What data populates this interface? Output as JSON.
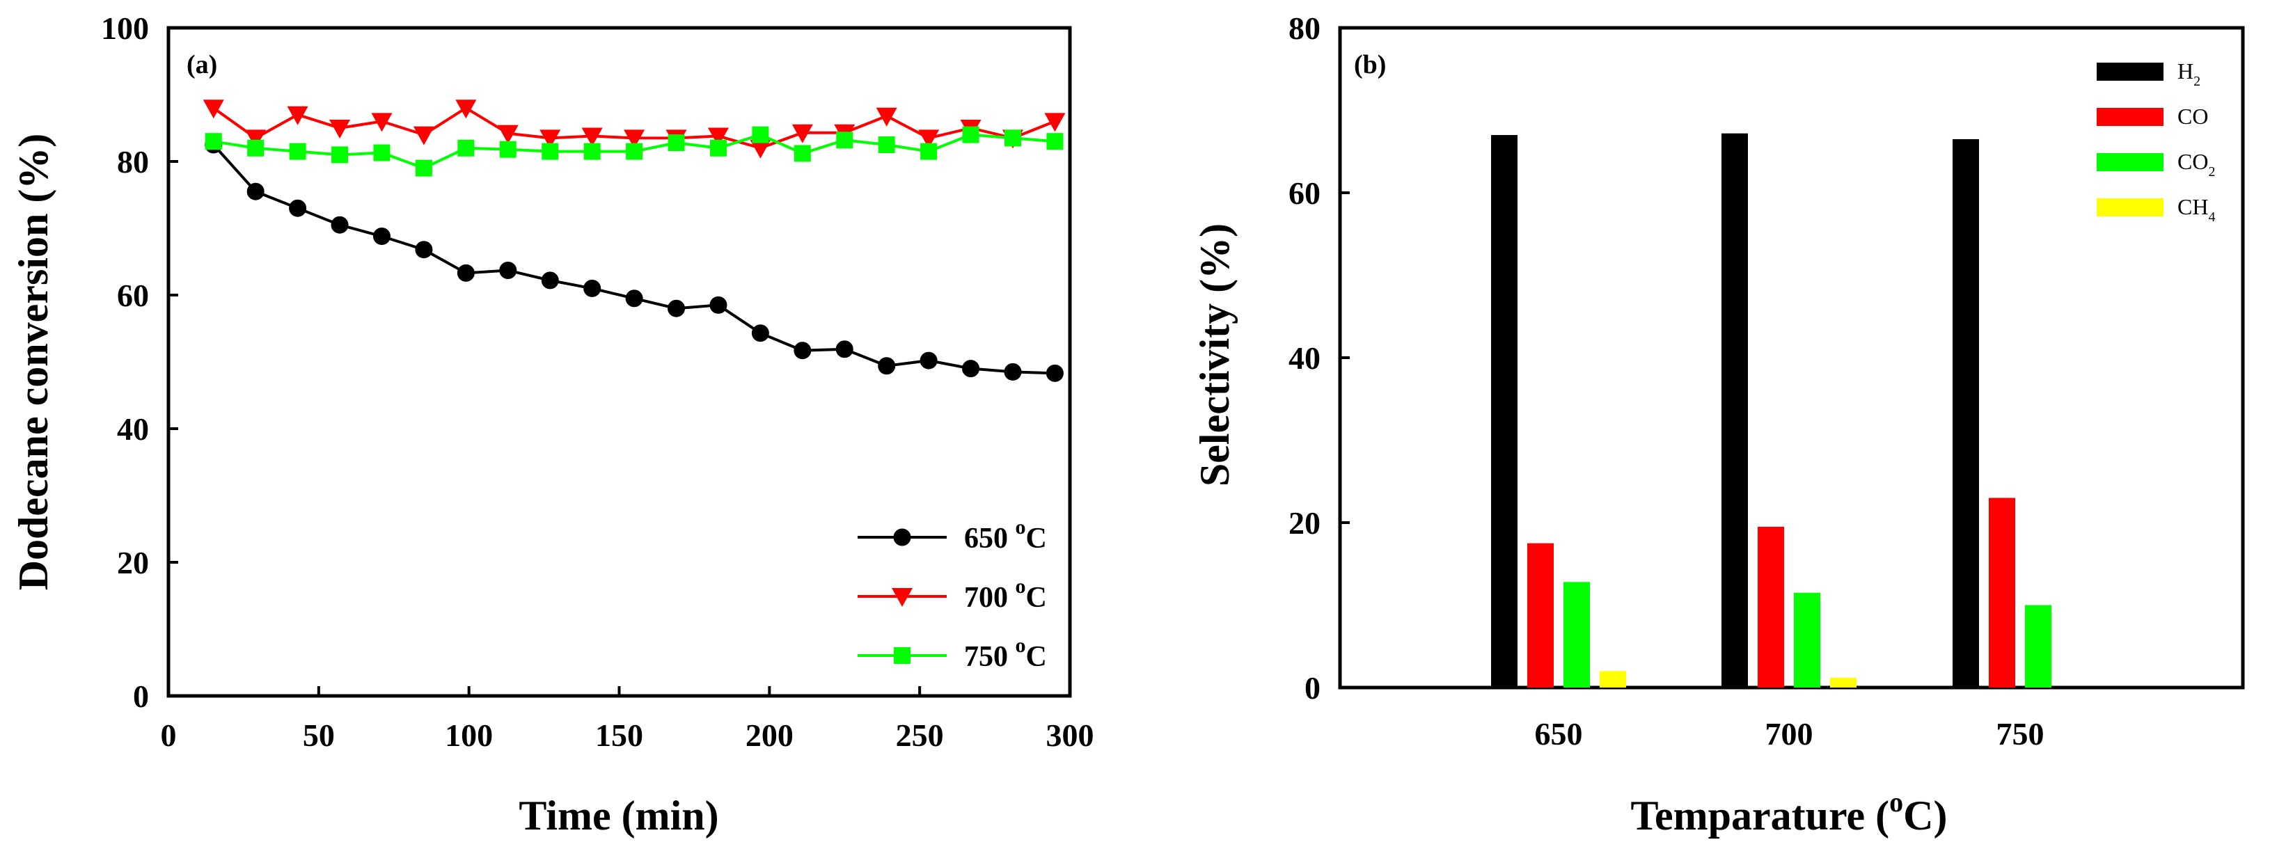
{
  "chart_data": [
    {
      "type": "line",
      "panel_label": "(a)",
      "title": "",
      "xlabel": "Time (min)",
      "ylabel": "Dodecane conversion (%)",
      "xlim": [
        0,
        300
      ],
      "ylim": [
        0,
        100
      ],
      "xticks": [
        0,
        50,
        100,
        150,
        200,
        250,
        300
      ],
      "yticks": [
        0,
        20,
        40,
        60,
        80,
        100
      ],
      "grid": false,
      "legend_position": "bottom-right",
      "x": [
        15,
        29,
        43,
        57,
        71,
        85,
        99,
        113,
        127,
        141,
        155,
        169,
        183,
        197,
        211,
        225,
        239,
        253,
        267,
        281,
        295
      ],
      "series": [
        {
          "name": "650 °C",
          "temp": "650",
          "unit_sup": "o",
          "unit": "C",
          "color": "#000000",
          "marker": "circle",
          "values": [
            82.5,
            75.5,
            73,
            70.5,
            68.8,
            66.8,
            63.3,
            63.7,
            62.2,
            61,
            59.5,
            58,
            58.5,
            54.3,
            51.7,
            51.9,
            49.4,
            50.2,
            49,
            48.5,
            48.3
          ]
        },
        {
          "name": "700 °C",
          "temp": "700",
          "unit_sup": "o",
          "unit": "C",
          "color": "#ff0000",
          "marker": "triangle-down",
          "values": [
            88,
            83.5,
            87,
            85,
            86,
            84,
            88,
            84.2,
            83.5,
            83.8,
            83.5,
            83.5,
            83.8,
            82,
            84.3,
            84.3,
            86.8,
            83.5,
            85,
            83.5,
            86
          ]
        },
        {
          "name": "750 °C",
          "temp": "750",
          "unit_sup": "o",
          "unit": "C",
          "color": "#00ff00",
          "marker": "square",
          "values": [
            83,
            82,
            81.5,
            81,
            81.3,
            79,
            82,
            81.8,
            81.5,
            81.5,
            81.5,
            82.8,
            82,
            84,
            81.2,
            83.2,
            82.5,
            81.5,
            84,
            83.5,
            83
          ]
        }
      ]
    },
    {
      "type": "bar",
      "panel_label": "(b)",
      "title": "",
      "xlabel_main": "Temparature (",
      "xlabel_sup": "o",
      "xlabel_end": "C)",
      "ylabel": "Selectivity (%)",
      "ylim": [
        0,
        80
      ],
      "yticks": [
        0,
        20,
        40,
        60,
        80
      ],
      "grid": false,
      "legend_position": "top-right",
      "categories": [
        "650",
        "700",
        "750"
      ],
      "series": [
        {
          "name": "H2",
          "base": "H",
          "sub": "2",
          "color": "#000000",
          "values": [
            67,
            67.2,
            66.5
          ]
        },
        {
          "name": "CO",
          "base": "CO",
          "sub": "",
          "color": "#ff0000",
          "values": [
            17.5,
            19.5,
            23
          ]
        },
        {
          "name": "CO2",
          "base": "CO",
          "sub": "2",
          "color": "#00ff00",
          "values": [
            12.8,
            11.5,
            10
          ]
        },
        {
          "name": "CH4",
          "base": "CH",
          "sub": "4",
          "color": "#ffff00",
          "values": [
            2,
            1.2,
            0
          ]
        }
      ]
    }
  ]
}
